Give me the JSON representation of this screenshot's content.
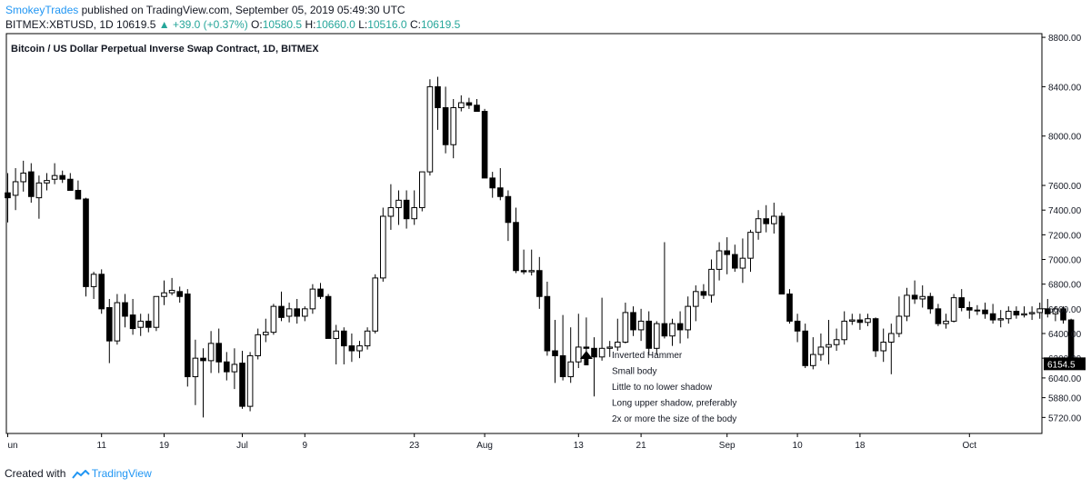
{
  "header": {
    "author": "SmokeyTrades",
    "published_text": "published on TradingView.com, September 05, 2019 05:49:30 UTC"
  },
  "ohlc": {
    "symbol": "BITMEX:XBTUSD, 1D",
    "last": "10619.5",
    "change": "▲ +39.0 (+0.37%)",
    "open_label": "O:",
    "open": "10580.5",
    "high_label": "H:",
    "high": "10660.0",
    "low_label": "L:",
    "low": "10516.0",
    "close_label": "C:",
    "close": "10619.5"
  },
  "footer": {
    "created_with": "Created with",
    "brand": "TradingView"
  },
  "colors": {
    "up_fill": "#ffffff",
    "down_fill": "#000000",
    "candle_outline": "#000000",
    "accent": "#2196f3",
    "change_up": "#26a69a"
  },
  "chart_data": {
    "type": "candlestick",
    "title": "Bitcoin / US Dollar Perpetual Inverse Swap Contract, 1D, BITMEX",
    "xlabel": "",
    "ylabel": "",
    "ylim": [
      5590,
      8830
    ],
    "y_ticks": [
      5720,
      5880,
      6040,
      6200,
      6400,
      6600,
      6800,
      7000,
      7200,
      7400,
      7600,
      8000,
      8400,
      8800
    ],
    "x_tick_labels": [
      {
        "label": "un",
        "index": 0
      },
      {
        "label": "11",
        "index": 12
      },
      {
        "label": "19",
        "index": 20
      },
      {
        "label": "Jul",
        "index": 30
      },
      {
        "label": "9",
        "index": 38
      },
      {
        "label": "23",
        "index": 52
      },
      {
        "label": "Aug",
        "index": 61
      },
      {
        "label": "13",
        "index": 73
      },
      {
        "label": "21",
        "index": 81
      },
      {
        "label": "Sep",
        "index": 92
      },
      {
        "label": "10",
        "index": 101
      },
      {
        "label": "18",
        "index": 109
      },
      {
        "label": "Oct",
        "index": 123
      }
    ],
    "last_price_label": "6154.5",
    "last_price": 6154.5,
    "grid": false,
    "annotation": {
      "candle_index": 74,
      "lines": [
        "Inverted Hammer",
        "Small body",
        "Little to no lower shadow",
        "Long upper shadow, preferably",
        "2x or more the size of the body"
      ]
    },
    "candles": [
      {
        "o": 7540,
        "h": 7700,
        "l": 7300,
        "c": 7500
      },
      {
        "o": 7520,
        "h": 7740,
        "l": 7400,
        "c": 7630
      },
      {
        "o": 7630,
        "h": 7800,
        "l": 7550,
        "c": 7700
      },
      {
        "o": 7710,
        "h": 7780,
        "l": 7460,
        "c": 7510
      },
      {
        "o": 7500,
        "h": 7680,
        "l": 7330,
        "c": 7620
      },
      {
        "o": 7620,
        "h": 7700,
        "l": 7560,
        "c": 7640
      },
      {
        "o": 7650,
        "h": 7780,
        "l": 7610,
        "c": 7680
      },
      {
        "o": 7680,
        "h": 7720,
        "l": 7620,
        "c": 7650
      },
      {
        "o": 7650,
        "h": 7700,
        "l": 7560,
        "c": 7560
      },
      {
        "o": 7560,
        "h": 7640,
        "l": 7490,
        "c": 7490
      },
      {
        "o": 7490,
        "h": 7500,
        "l": 6700,
        "c": 6780
      },
      {
        "o": 6780,
        "h": 6900,
        "l": 6680,
        "c": 6880
      },
      {
        "o": 6880,
        "h": 6920,
        "l": 6560,
        "c": 6600
      },
      {
        "o": 6610,
        "h": 6680,
        "l": 6160,
        "c": 6340
      },
      {
        "o": 6340,
        "h": 6720,
        "l": 6310,
        "c": 6650
      },
      {
        "o": 6650,
        "h": 6720,
        "l": 6450,
        "c": 6540
      },
      {
        "o": 6550,
        "h": 6680,
        "l": 6390,
        "c": 6440
      },
      {
        "o": 6450,
        "h": 6560,
        "l": 6380,
        "c": 6500
      },
      {
        "o": 6500,
        "h": 6560,
        "l": 6410,
        "c": 6450
      },
      {
        "o": 6450,
        "h": 6700,
        "l": 6420,
        "c": 6700
      },
      {
        "o": 6700,
        "h": 6830,
        "l": 6630,
        "c": 6730
      },
      {
        "o": 6730,
        "h": 6850,
        "l": 6710,
        "c": 6750
      },
      {
        "o": 6740,
        "h": 6780,
        "l": 6650,
        "c": 6700
      },
      {
        "o": 6720,
        "h": 6760,
        "l": 5970,
        "c": 6050
      },
      {
        "o": 6050,
        "h": 6350,
        "l": 5820,
        "c": 6200
      },
      {
        "o": 6200,
        "h": 6280,
        "l": 5720,
        "c": 6180
      },
      {
        "o": 6180,
        "h": 6420,
        "l": 6080,
        "c": 6320
      },
      {
        "o": 6320,
        "h": 6440,
        "l": 6080,
        "c": 6170
      },
      {
        "o": 6170,
        "h": 6250,
        "l": 6020,
        "c": 6090
      },
      {
        "o": 6090,
        "h": 6280,
        "l": 5950,
        "c": 6150
      },
      {
        "o": 6160,
        "h": 6260,
        "l": 5790,
        "c": 5810
      },
      {
        "o": 5810,
        "h": 6250,
        "l": 5770,
        "c": 6220
      },
      {
        "o": 6220,
        "h": 6440,
        "l": 6190,
        "c": 6390
      },
      {
        "o": 6390,
        "h": 6520,
        "l": 6330,
        "c": 6410
      },
      {
        "o": 6410,
        "h": 6640,
        "l": 6390,
        "c": 6620
      },
      {
        "o": 6620,
        "h": 6740,
        "l": 6500,
        "c": 6530
      },
      {
        "o": 6540,
        "h": 6650,
        "l": 6490,
        "c": 6600
      },
      {
        "o": 6600,
        "h": 6680,
        "l": 6480,
        "c": 6540
      },
      {
        "o": 6540,
        "h": 6620,
        "l": 6500,
        "c": 6600
      },
      {
        "o": 6600,
        "h": 6800,
        "l": 6560,
        "c": 6760
      },
      {
        "o": 6760,
        "h": 6810,
        "l": 6680,
        "c": 6700
      },
      {
        "o": 6700,
        "h": 6720,
        "l": 6360,
        "c": 6360
      },
      {
        "o": 6360,
        "h": 6470,
        "l": 6150,
        "c": 6420
      },
      {
        "o": 6420,
        "h": 6450,
        "l": 6150,
        "c": 6300
      },
      {
        "o": 6300,
        "h": 6400,
        "l": 6170,
        "c": 6260
      },
      {
        "o": 6260,
        "h": 6340,
        "l": 6200,
        "c": 6300
      },
      {
        "o": 6300,
        "h": 6450,
        "l": 6270,
        "c": 6420
      },
      {
        "o": 6420,
        "h": 6880,
        "l": 6400,
        "c": 6850
      },
      {
        "o": 6850,
        "h": 7420,
        "l": 6820,
        "c": 7350
      },
      {
        "o": 7350,
        "h": 7610,
        "l": 7240,
        "c": 7420
      },
      {
        "o": 7420,
        "h": 7560,
        "l": 7280,
        "c": 7480
      },
      {
        "o": 7480,
        "h": 7560,
        "l": 7250,
        "c": 7330
      },
      {
        "o": 7330,
        "h": 7560,
        "l": 7280,
        "c": 7420
      },
      {
        "o": 7420,
        "h": 7700,
        "l": 7390,
        "c": 7710
      },
      {
        "o": 7710,
        "h": 8460,
        "l": 7680,
        "c": 8400
      },
      {
        "o": 8400,
        "h": 8480,
        "l": 8050,
        "c": 8230
      },
      {
        "o": 8230,
        "h": 8400,
        "l": 7860,
        "c": 7930
      },
      {
        "o": 7930,
        "h": 8300,
        "l": 7820,
        "c": 8230
      },
      {
        "o": 8230,
        "h": 8330,
        "l": 8200,
        "c": 8270
      },
      {
        "o": 8270,
        "h": 8310,
        "l": 8220,
        "c": 8250
      },
      {
        "o": 8250,
        "h": 8300,
        "l": 8200,
        "c": 8200
      },
      {
        "o": 8200,
        "h": 8220,
        "l": 7660,
        "c": 7660
      },
      {
        "o": 7660,
        "h": 7710,
        "l": 7500,
        "c": 7580
      },
      {
        "o": 7580,
        "h": 7740,
        "l": 7480,
        "c": 7510
      },
      {
        "o": 7510,
        "h": 7560,
        "l": 7150,
        "c": 7300
      },
      {
        "o": 7300,
        "h": 7420,
        "l": 6890,
        "c": 6910
      },
      {
        "o": 6910,
        "h": 7080,
        "l": 6880,
        "c": 6900
      },
      {
        "o": 6900,
        "h": 7080,
        "l": 6870,
        "c": 6910
      },
      {
        "o": 6910,
        "h": 7020,
        "l": 6600,
        "c": 6700
      },
      {
        "o": 6700,
        "h": 6820,
        "l": 6220,
        "c": 6260
      },
      {
        "o": 6260,
        "h": 6510,
        "l": 6000,
        "c": 6220
      },
      {
        "o": 6220,
        "h": 6550,
        "l": 6020,
        "c": 6050
      },
      {
        "o": 6050,
        "h": 6450,
        "l": 6000,
        "c": 6170
      },
      {
        "o": 6170,
        "h": 6560,
        "l": 6120,
        "c": 6290
      },
      {
        "o": 6290,
        "h": 6530,
        "l": 6210,
        "c": 6280
      },
      {
        "o": 6280,
        "h": 6370,
        "l": 5890,
        "c": 6210
      },
      {
        "o": 6210,
        "h": 6690,
        "l": 6180,
        "c": 6280
      },
      {
        "o": 6280,
        "h": 6340,
        "l": 6210,
        "c": 6290
      },
      {
        "o": 6290,
        "h": 6520,
        "l": 6260,
        "c": 6330
      },
      {
        "o": 6330,
        "h": 6650,
        "l": 6320,
        "c": 6570
      },
      {
        "o": 6570,
        "h": 6620,
        "l": 6380,
        "c": 6430
      },
      {
        "o": 6430,
        "h": 6600,
        "l": 6340,
        "c": 6500
      },
      {
        "o": 6500,
        "h": 6580,
        "l": 6230,
        "c": 6280
      },
      {
        "o": 6280,
        "h": 6500,
        "l": 6230,
        "c": 6480
      },
      {
        "o": 6480,
        "h": 7140,
        "l": 6360,
        "c": 6380
      },
      {
        "o": 6380,
        "h": 6520,
        "l": 6300,
        "c": 6480
      },
      {
        "o": 6480,
        "h": 6580,
        "l": 6320,
        "c": 6430
      },
      {
        "o": 6430,
        "h": 6700,
        "l": 6360,
        "c": 6620
      },
      {
        "o": 6620,
        "h": 6790,
        "l": 6500,
        "c": 6740
      },
      {
        "o": 6740,
        "h": 6800,
        "l": 6680,
        "c": 6710
      },
      {
        "o": 6710,
        "h": 7000,
        "l": 6650,
        "c": 6920
      },
      {
        "o": 6920,
        "h": 7140,
        "l": 6830,
        "c": 7070
      },
      {
        "o": 7070,
        "h": 7180,
        "l": 6880,
        "c": 7040
      },
      {
        "o": 7040,
        "h": 7120,
        "l": 6900,
        "c": 6930
      },
      {
        "o": 6930,
        "h": 7170,
        "l": 6810,
        "c": 7010
      },
      {
        "o": 7010,
        "h": 7240,
        "l": 6900,
        "c": 7220
      },
      {
        "o": 7220,
        "h": 7400,
        "l": 7160,
        "c": 7330
      },
      {
        "o": 7330,
        "h": 7440,
        "l": 7220,
        "c": 7290
      },
      {
        "o": 7290,
        "h": 7460,
        "l": 7210,
        "c": 7350
      },
      {
        "o": 7350,
        "h": 7380,
        "l": 6720,
        "c": 6720
      },
      {
        "o": 6720,
        "h": 6760,
        "l": 6480,
        "c": 6500
      },
      {
        "o": 6500,
        "h": 6560,
        "l": 6330,
        "c": 6420
      },
      {
        "o": 6420,
        "h": 6480,
        "l": 6120,
        "c": 6140
      },
      {
        "o": 6140,
        "h": 6370,
        "l": 6110,
        "c": 6230
      },
      {
        "o": 6230,
        "h": 6400,
        "l": 6180,
        "c": 6290
      },
      {
        "o": 6290,
        "h": 6510,
        "l": 6150,
        "c": 6310
      },
      {
        "o": 6310,
        "h": 6440,
        "l": 6260,
        "c": 6350
      },
      {
        "o": 6350,
        "h": 6580,
        "l": 6310,
        "c": 6500
      },
      {
        "o": 6500,
        "h": 6560,
        "l": 6470,
        "c": 6510
      },
      {
        "o": 6510,
        "h": 6560,
        "l": 6430,
        "c": 6490
      },
      {
        "o": 6490,
        "h": 6560,
        "l": 6460,
        "c": 6520
      },
      {
        "o": 6520,
        "h": 6530,
        "l": 6210,
        "c": 6260
      },
      {
        "o": 6260,
        "h": 6440,
        "l": 6170,
        "c": 6330
      },
      {
        "o": 6330,
        "h": 6480,
        "l": 6070,
        "c": 6400
      },
      {
        "o": 6400,
        "h": 6700,
        "l": 6370,
        "c": 6540
      },
      {
        "o": 6540,
        "h": 6770,
        "l": 6500,
        "c": 6710
      },
      {
        "o": 6710,
        "h": 6830,
        "l": 6640,
        "c": 6680
      },
      {
        "o": 6680,
        "h": 6790,
        "l": 6610,
        "c": 6700
      },
      {
        "o": 6700,
        "h": 6730,
        "l": 6560,
        "c": 6600
      },
      {
        "o": 6600,
        "h": 6640,
        "l": 6460,
        "c": 6480
      },
      {
        "o": 6480,
        "h": 6560,
        "l": 6440,
        "c": 6500
      },
      {
        "o": 6500,
        "h": 6720,
        "l": 6490,
        "c": 6690
      },
      {
        "o": 6690,
        "h": 6760,
        "l": 6580,
        "c": 6610
      },
      {
        "o": 6610,
        "h": 6660,
        "l": 6520,
        "c": 6590
      },
      {
        "o": 6590,
        "h": 6630,
        "l": 6550,
        "c": 6590
      },
      {
        "o": 6590,
        "h": 6650,
        "l": 6520,
        "c": 6560
      },
      {
        "o": 6560,
        "h": 6640,
        "l": 6480,
        "c": 6510
      },
      {
        "o": 6510,
        "h": 6590,
        "l": 6450,
        "c": 6520
      },
      {
        "o": 6520,
        "h": 6620,
        "l": 6480,
        "c": 6580
      },
      {
        "o": 6580,
        "h": 6620,
        "l": 6520,
        "c": 6550
      },
      {
        "o": 6550,
        "h": 6620,
        "l": 6530,
        "c": 6560
      },
      {
        "o": 6560,
        "h": 6620,
        "l": 6510,
        "c": 6570
      },
      {
        "o": 6570,
        "h": 6650,
        "l": 6520,
        "c": 6600
      },
      {
        "o": 6600,
        "h": 6680,
        "l": 6530,
        "c": 6560
      },
      {
        "o": 6560,
        "h": 6620,
        "l": 6500,
        "c": 6600
      },
      {
        "o": 6600,
        "h": 6620,
        "l": 6480,
        "c": 6510
      },
      {
        "o": 6510,
        "h": 6520,
        "l": 6150,
        "c": 6154.5
      }
    ]
  }
}
